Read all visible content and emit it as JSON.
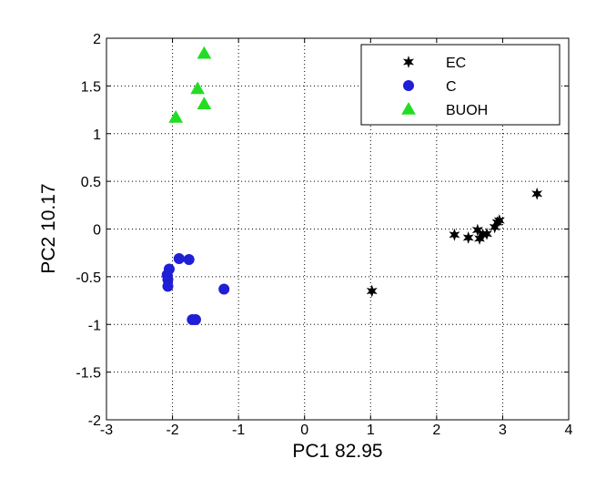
{
  "chart_data": {
    "type": "scatter",
    "title": "",
    "xlabel": "PC1 82.95",
    "ylabel": "PC2 10.17",
    "xlim": [
      -3,
      4
    ],
    "ylim": [
      -2,
      2
    ],
    "xticks": [
      -3,
      -2,
      -1,
      0,
      1,
      2,
      3,
      4
    ],
    "yticks": [
      -2,
      -1.5,
      -1,
      -0.5,
      0,
      0.5,
      1,
      1.5,
      2
    ],
    "grid": true,
    "legend_position": "top-right",
    "series": [
      {
        "name": "EC",
        "marker": "star",
        "color": "#000000",
        "points": [
          [
            1.02,
            -0.65
          ],
          [
            2.27,
            -0.06
          ],
          [
            2.48,
            -0.09
          ],
          [
            2.62,
            -0.01
          ],
          [
            2.65,
            -0.1
          ],
          [
            2.7,
            -0.06
          ],
          [
            2.76,
            -0.05
          ],
          [
            2.88,
            0.02
          ],
          [
            2.92,
            0.07
          ],
          [
            2.95,
            0.09
          ],
          [
            3.52,
            0.37
          ]
        ]
      },
      {
        "name": "C",
        "marker": "circle",
        "color": "#1f1fd6",
        "points": [
          [
            -2.05,
            -0.42
          ],
          [
            -2.08,
            -0.48
          ],
          [
            -2.07,
            -0.53
          ],
          [
            -2.07,
            -0.6
          ],
          [
            -1.9,
            -0.31
          ],
          [
            -1.75,
            -0.32
          ],
          [
            -1.7,
            -0.95
          ],
          [
            -1.65,
            -0.95
          ],
          [
            -1.22,
            -0.63
          ]
        ]
      },
      {
        "name": "BUOH",
        "marker": "triangle",
        "color": "#22dd22",
        "points": [
          [
            -1.95,
            1.17
          ],
          [
            -1.62,
            1.47
          ],
          [
            -1.52,
            1.31
          ],
          [
            -1.52,
            1.84
          ]
        ]
      }
    ]
  }
}
